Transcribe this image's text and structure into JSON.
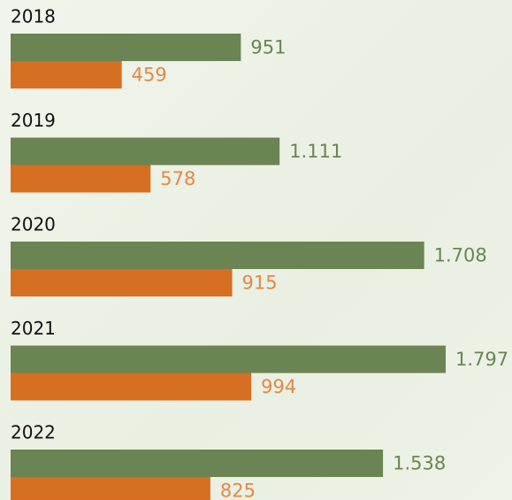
{
  "chart_data": {
    "type": "bar",
    "orientation": "horizontal",
    "categories": [
      "2018",
      "2019",
      "2020",
      "2021",
      "2022"
    ],
    "series": [
      {
        "color": "#6b8453",
        "values": [
          951,
          1111,
          1708,
          1797,
          1538
        ],
        "value_labels": [
          "951",
          "1.111",
          "1.708",
          "1.797",
          "1.538"
        ]
      },
      {
        "color": "#d66f22",
        "values": [
          459,
          578,
          915,
          994,
          825
        ]
      }
    ]
  }
}
